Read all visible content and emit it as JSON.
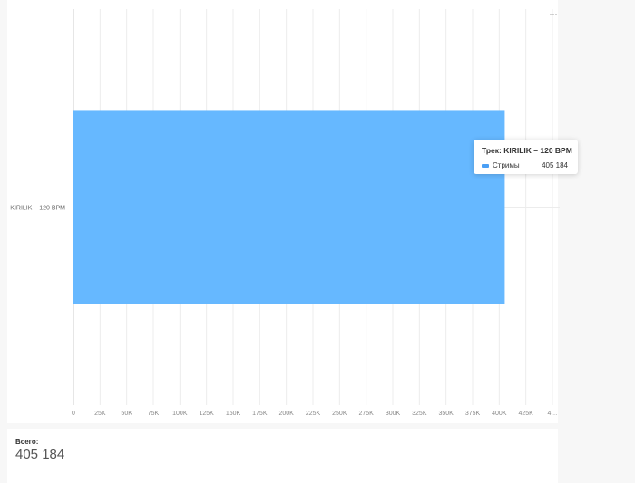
{
  "chart_data": {
    "type": "bar",
    "orientation": "horizontal",
    "categories": [
      "KIRILIK – 120 BPM"
    ],
    "series": [
      {
        "name": "Стримы",
        "values": [
          405184
        ],
        "color": "#66b8ff"
      }
    ],
    "xlim": [
      0,
      450000
    ],
    "x_ticks": [
      "0",
      "25K",
      "50K",
      "75K",
      "100K",
      "125K",
      "150K",
      "175K",
      "200K",
      "225K",
      "250K",
      "275K",
      "300K",
      "325K",
      "350K",
      "375K",
      "400K",
      "425K",
      "4…"
    ],
    "grid": true
  },
  "tooltip": {
    "title": "Трек: KIRILIK – 120 BPM",
    "series_name": "Стримы",
    "value": "405 184"
  },
  "menu_label": "···",
  "total": {
    "label": "Всего:",
    "value": "405 184"
  }
}
